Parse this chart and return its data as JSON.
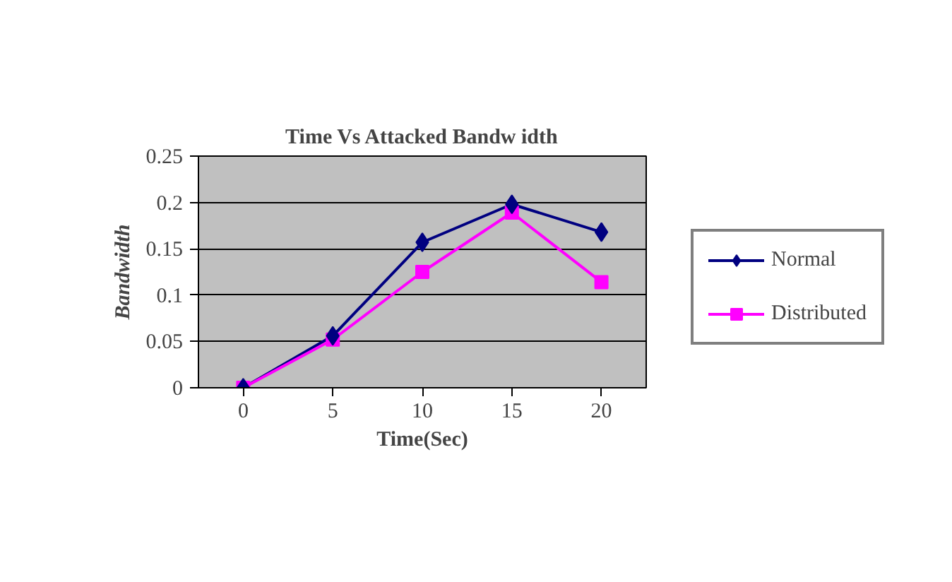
{
  "chart_data": {
    "type": "line",
    "title": "Time Vs Attacked Bandw idth",
    "xlabel": "Time(Sec)",
    "ylabel": "Bandwidth",
    "categories": [
      "0",
      "5",
      "10",
      "15",
      "20"
    ],
    "ylim": [
      0,
      0.25
    ],
    "yticks": [
      0,
      0.05,
      0.1,
      0.15,
      0.2,
      0.25
    ],
    "grid": "y",
    "legend": "right",
    "line_style": "solid",
    "series": [
      {
        "name": "Normal",
        "color": "#000080",
        "marker": "diamond",
        "values": [
          0,
          0.056,
          0.157,
          0.198,
          0.168
        ]
      },
      {
        "name": "Distributed",
        "color": "#ff00ff",
        "marker": "square",
        "values": [
          0,
          0.052,
          0.125,
          0.189,
          0.114
        ]
      }
    ]
  }
}
